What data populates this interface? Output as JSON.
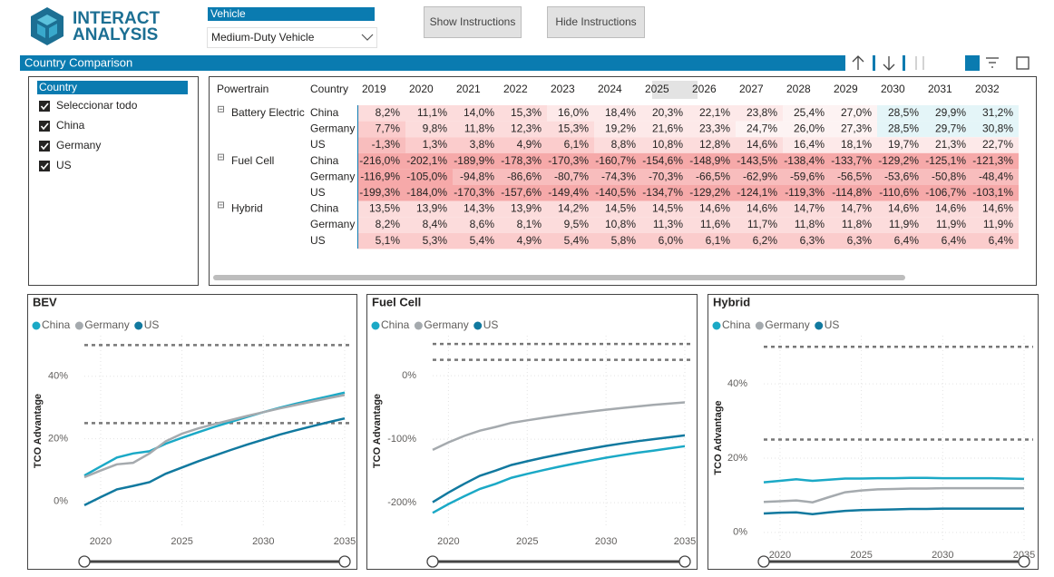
{
  "header": {
    "logo_line1": "INTERACT",
    "logo_line2": "ANALYSIS",
    "vehicle_label": "Vehicle",
    "vehicle_value": "Medium-Duty Vehicle",
    "buttons": [
      "Show Instructions",
      "Hide Instructions"
    ]
  },
  "section_title": "Country Comparison",
  "slicer": {
    "title": "Country",
    "items": [
      "Seleccionar todo",
      "China",
      "Germany",
      "US"
    ]
  },
  "table": {
    "columns": [
      "Powertrain",
      "Country",
      "2019",
      "2020",
      "2021",
      "2022",
      "2023",
      "2024",
      "2025",
      "2026",
      "2027",
      "2028",
      "2029",
      "2030",
      "2031",
      "2032"
    ],
    "groups": [
      {
        "powertrain": "Battery Electric",
        "rows": [
          {
            "country": "China",
            "values": [
              "8,2%",
              "11,1%",
              "14,0%",
              "15,3%",
              "16,0%",
              "18,4%",
              "20,3%",
              "22,1%",
              "23,8%",
              "25,4%",
              "27,0%",
              "28,5%",
              "29,9%",
              "31,2%"
            ]
          },
          {
            "country": "Germany",
            "values": [
              "7,7%",
              "9,8%",
              "11,8%",
              "12,3%",
              "15,3%",
              "19,2%",
              "21,6%",
              "23,3%",
              "24,7%",
              "26,0%",
              "27,3%",
              "28,5%",
              "29,7%",
              "30,8%"
            ]
          },
          {
            "country": "US",
            "values": [
              "-1,3%",
              "1,3%",
              "3,8%",
              "4,9%",
              "6,1%",
              "8,8%",
              "10,8%",
              "12,8%",
              "14,6%",
              "16,4%",
              "18,1%",
              "19,7%",
              "21,3%",
              "22,7%"
            ]
          }
        ]
      },
      {
        "powertrain": "Fuel Cell",
        "rows": [
          {
            "country": "China",
            "values": [
              "-216,0%",
              "-202,1%",
              "-189,9%",
              "-178,3%",
              "-170,3%",
              "-160,7%",
              "-154,6%",
              "-148,9%",
              "-143,5%",
              "-138,4%",
              "-133,7%",
              "-129,2%",
              "-125,1%",
              "-121,3%"
            ]
          },
          {
            "country": "Germany",
            "values": [
              "-116,9%",
              "-105,0%",
              "-94,8%",
              "-86,6%",
              "-80,7%",
              "-74,3%",
              "-70,3%",
              "-66,5%",
              "-62,9%",
              "-59,6%",
              "-56,5%",
              "-53,6%",
              "-50,8%",
              "-48,4%"
            ]
          },
          {
            "country": "US",
            "values": [
              "-199,3%",
              "-184,0%",
              "-170,3%",
              "-157,6%",
              "-149,4%",
              "-140,5%",
              "-134,7%",
              "-129,2%",
              "-124,1%",
              "-119,3%",
              "-114,8%",
              "-110,6%",
              "-106,7%",
              "-103,1%"
            ]
          }
        ]
      },
      {
        "powertrain": "Hybrid",
        "rows": [
          {
            "country": "China",
            "values": [
              "13,5%",
              "13,9%",
              "14,3%",
              "13,9%",
              "14,2%",
              "14,5%",
              "14,5%",
              "14,6%",
              "14,6%",
              "14,7%",
              "14,7%",
              "14,6%",
              "14,6%",
              "14,6%"
            ]
          },
          {
            "country": "Germany",
            "values": [
              "8,2%",
              "8,4%",
              "8,6%",
              "8,1%",
              "9,5%",
              "10,8%",
              "11,3%",
              "11,6%",
              "11,7%",
              "11,8%",
              "11,8%",
              "11,9%",
              "11,9%",
              "11,9%"
            ]
          },
          {
            "country": "US",
            "values": [
              "5,1%",
              "5,3%",
              "5,4%",
              "4,9%",
              "5,4%",
              "5,8%",
              "6,0%",
              "6,1%",
              "6,2%",
              "6,3%",
              "6,3%",
              "6,4%",
              "6,4%",
              "6,4%"
            ]
          }
        ]
      }
    ]
  },
  "chart_data": [
    {
      "type": "line",
      "title": "BEV",
      "y_label": "TCO Advantage",
      "x": [
        2019,
        2020,
        2021,
        2022,
        2023,
        2024,
        2025,
        2026,
        2027,
        2028,
        2029,
        2030,
        2031,
        2032,
        2033,
        2034,
        2035
      ],
      "xlim": [
        2019,
        2035
      ],
      "xticks": [
        2020,
        2025,
        2030,
        2035
      ],
      "ylim": [
        -8,
        53
      ],
      "yticks": [
        {
          "value": 0,
          "label": "0%"
        },
        {
          "value": 20,
          "label": "20%"
        },
        {
          "value": 40,
          "label": "40%"
        }
      ],
      "reference_lines": [
        50,
        25
      ],
      "grid": true,
      "series": [
        {
          "name": "China",
          "color": "#1ba9c6",
          "values": [
            8.2,
            11.1,
            14.0,
            15.3,
            16.0,
            18.4,
            20.3,
            22.1,
            23.8,
            25.4,
            27.0,
            28.5,
            29.9,
            31.2,
            32.4,
            33.6,
            34.8
          ]
        },
        {
          "name": "Germany",
          "color": "#a5aaae",
          "values": [
            7.7,
            9.8,
            11.8,
            12.3,
            15.3,
            19.2,
            21.6,
            23.3,
            24.7,
            26.0,
            27.3,
            28.5,
            29.7,
            30.8,
            31.9,
            33.0,
            34.0
          ]
        },
        {
          "name": "US",
          "color": "#11799f",
          "values": [
            -1.3,
            1.3,
            3.8,
            4.9,
            6.1,
            8.8,
            10.8,
            12.8,
            14.6,
            16.4,
            18.1,
            19.7,
            21.3,
            22.7,
            24.0,
            25.3,
            26.5
          ]
        }
      ]
    },
    {
      "type": "line",
      "title": "Fuel Cell",
      "y_label": "TCO Advantage",
      "x": [
        2019,
        2020,
        2021,
        2022,
        2023,
        2024,
        2025,
        2026,
        2027,
        2028,
        2029,
        2030,
        2031,
        2032,
        2033,
        2034,
        2035
      ],
      "xlim": [
        2019,
        2035
      ],
      "xticks": [
        2020,
        2025,
        2030,
        2035
      ],
      "ylim": [
        -237,
        63
      ],
      "yticks": [
        {
          "value": -200,
          "label": "-200%"
        },
        {
          "value": -100,
          "label": "-100%"
        },
        {
          "value": 0,
          "label": "0%"
        }
      ],
      "reference_lines": [
        50,
        25
      ],
      "grid": true,
      "series": [
        {
          "name": "China",
          "color": "#1ba9c6",
          "values": [
            -216.0,
            -202.1,
            -189.9,
            -178.3,
            -170.3,
            -160.7,
            -154.6,
            -148.9,
            -143.5,
            -138.4,
            -133.7,
            -129.2,
            -125.1,
            -121.3,
            -118.0,
            -114.5,
            -111.0
          ]
        },
        {
          "name": "Germany",
          "color": "#a5aaae",
          "values": [
            -116.9,
            -105.0,
            -94.8,
            -86.6,
            -80.7,
            -74.3,
            -70.3,
            -66.5,
            -62.9,
            -59.6,
            -56.5,
            -53.6,
            -50.8,
            -48.4,
            -46.0,
            -44.0,
            -42.0
          ]
        },
        {
          "name": "US",
          "color": "#11799f",
          "values": [
            -199.3,
            -184.0,
            -170.3,
            -157.6,
            -149.4,
            -140.5,
            -134.7,
            -129.2,
            -124.1,
            -119.3,
            -114.8,
            -110.6,
            -106.7,
            -103.1,
            -100.0,
            -97.0,
            -94.0
          ]
        }
      ]
    },
    {
      "type": "line",
      "title": "Hybrid",
      "y_label": "TCO Advantage",
      "x": [
        2019,
        2020,
        2021,
        2022,
        2023,
        2024,
        2025,
        2026,
        2027,
        2028,
        2029,
        2030,
        2031,
        2032,
        2033,
        2034,
        2035
      ],
      "xlim": [
        2019,
        2035
      ],
      "xticks": [
        2020,
        2025,
        2030,
        2035
      ],
      "ylim": [
        -2,
        53
      ],
      "yticks": [
        {
          "value": 0,
          "label": "0%"
        },
        {
          "value": 20,
          "label": "20%"
        },
        {
          "value": 40,
          "label": "40%"
        }
      ],
      "reference_lines": [
        50,
        25
      ],
      "grid": true,
      "series": [
        {
          "name": "China",
          "color": "#1ba9c6",
          "values": [
            13.5,
            13.9,
            14.3,
            13.9,
            14.2,
            14.5,
            14.5,
            14.6,
            14.6,
            14.7,
            14.7,
            14.6,
            14.6,
            14.6,
            14.6,
            14.5,
            14.4
          ]
        },
        {
          "name": "Germany",
          "color": "#a5aaae",
          "values": [
            8.2,
            8.4,
            8.6,
            8.1,
            9.5,
            10.8,
            11.3,
            11.6,
            11.7,
            11.8,
            11.8,
            11.9,
            11.9,
            11.9,
            11.9,
            11.9,
            11.9
          ]
        },
        {
          "name": "US",
          "color": "#11799f",
          "values": [
            5.1,
            5.3,
            5.4,
            4.9,
            5.4,
            5.8,
            6.0,
            6.1,
            6.2,
            6.3,
            6.3,
            6.4,
            6.4,
            6.4,
            6.4,
            6.4,
            6.4
          ]
        }
      ]
    }
  ]
}
